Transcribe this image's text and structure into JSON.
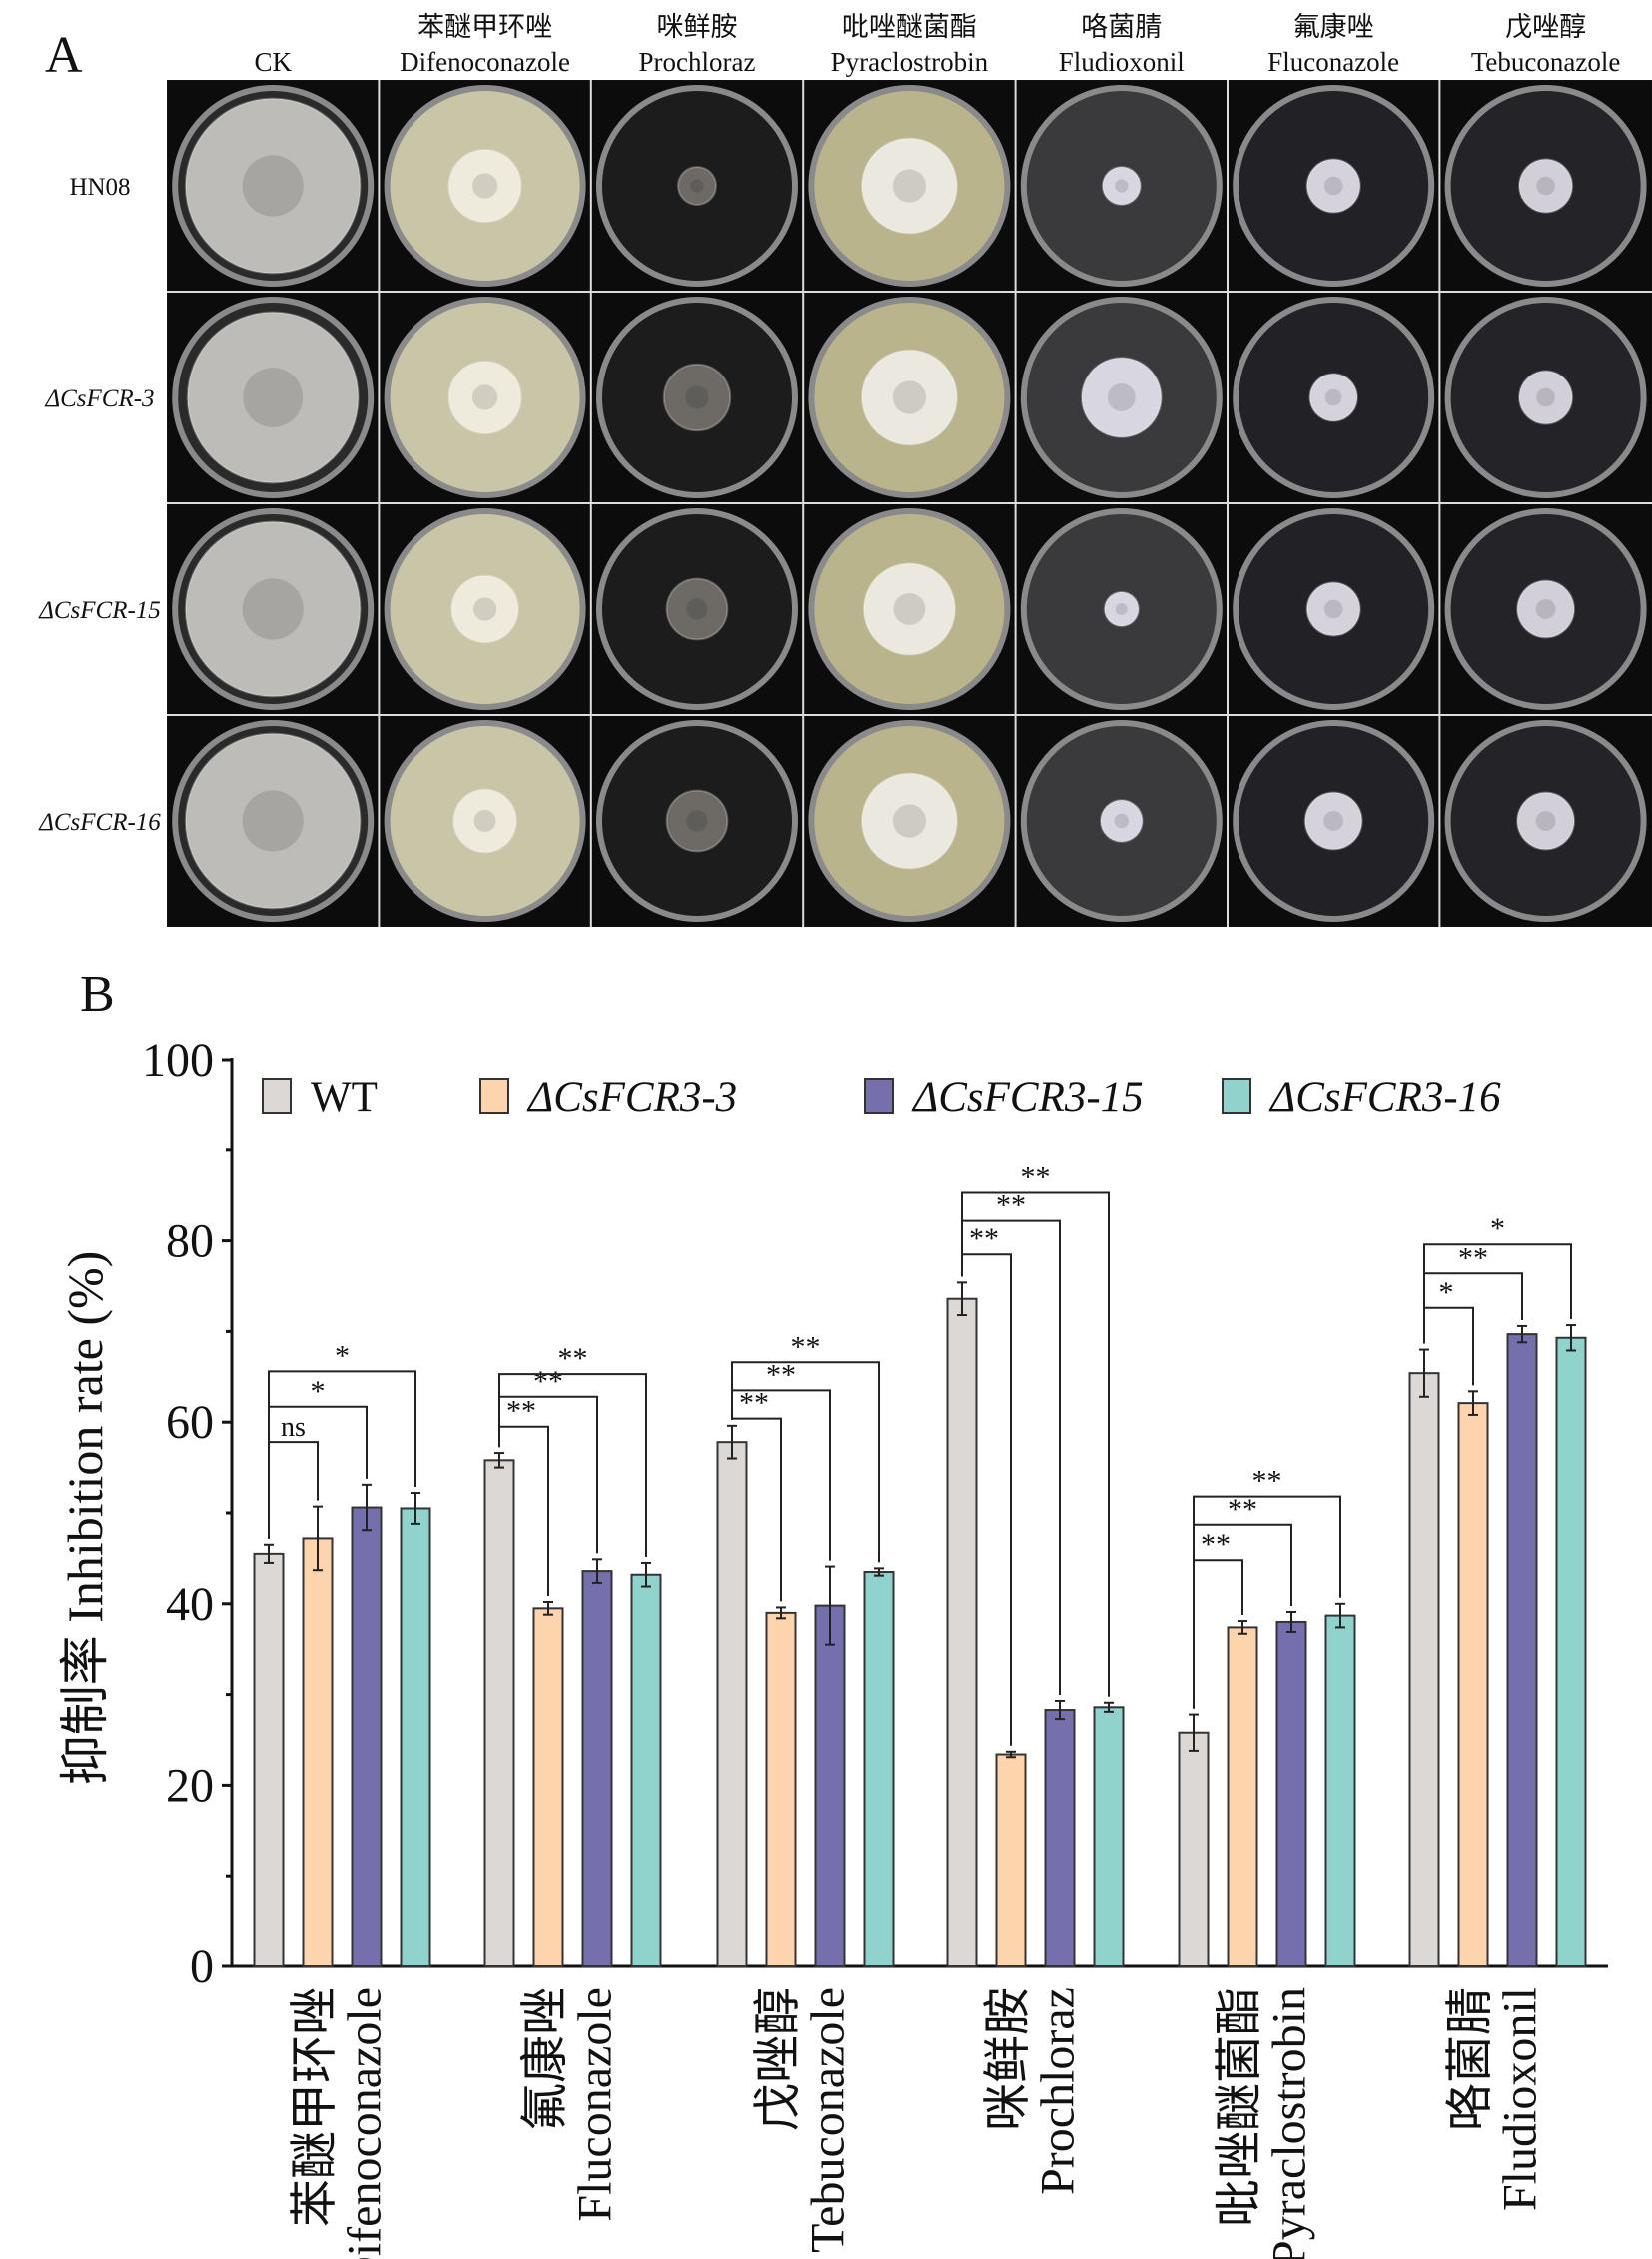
{
  "panelA": {
    "label": "A",
    "columns": [
      {
        "zh": "",
        "en": "CK"
      },
      {
        "zh": "苯醚甲环唑",
        "en": "Difenoconazole"
      },
      {
        "zh": "咪鲜胺",
        "en": "Prochloraz"
      },
      {
        "zh": "吡唑醚菌酯",
        "en": "Pyraclostrobin"
      },
      {
        "zh": "咯菌腈",
        "en": "Fludioxonil"
      },
      {
        "zh": "氟康唑",
        "en": "Fluconazole"
      },
      {
        "zh": "戊唑醇",
        "en": "Tebuconazole"
      }
    ],
    "rows": [
      "HN08",
      "ΔCsFCR-3",
      "ΔCsFCR-15",
      "ΔCsFCR-16"
    ],
    "dish_background": [
      "#2a2a2a",
      "#c9c6a8",
      "#1c1c1c",
      "#b9b48c",
      "#3a3a3c",
      "#222226",
      "#242428"
    ],
    "colony_color": [
      "#bdbcb8",
      "#eeeadc",
      "#6d6a66",
      "#eae8df",
      "#d8d6e0",
      "#d6d2dc",
      "#d2cfd8"
    ],
    "colony_relative_diameter": [
      [
        0.92,
        0.38,
        0.2,
        0.5,
        0.2,
        0.28,
        0.28
      ],
      [
        0.9,
        0.38,
        0.35,
        0.5,
        0.42,
        0.25,
        0.28
      ],
      [
        0.92,
        0.35,
        0.32,
        0.48,
        0.18,
        0.28,
        0.3
      ],
      [
        0.92,
        0.33,
        0.32,
        0.5,
        0.22,
        0.3,
        0.3
      ]
    ]
  },
  "chart_data": {
    "panel_label": "B",
    "type": "bar",
    "ylabel": "抑制率 Inhibition rate (%)",
    "ylim": [
      0,
      100
    ],
    "yticks": [
      0,
      20,
      40,
      60,
      80,
      100
    ],
    "legend_position": "top",
    "categories": [
      {
        "zh": "苯醚甲环唑",
        "en": "Difenoconazole"
      },
      {
        "zh": "氟康唑",
        "en": "Fluconazole"
      },
      {
        "zh": "戊唑醇",
        "en": "Tebuconazole"
      },
      {
        "zh": "咪鲜胺",
        "en": "Prochloraz"
      },
      {
        "zh": "吡唑醚菌酯",
        "en": "Pyraclostrobin"
      },
      {
        "zh": "咯菌腈",
        "en": "Fludioxonil"
      }
    ],
    "series": [
      {
        "name": "WT",
        "color": "#dcd8d6",
        "values": [
          45.5,
          55.8,
          57.8,
          73.6,
          25.8,
          65.4
        ],
        "errors": [
          1.0,
          0.8,
          1.8,
          1.8,
          2.0,
          2.6
        ]
      },
      {
        "name": "ΔCsFCR3-3",
        "color": "#fdd4ac",
        "values": [
          47.2,
          39.5,
          39.0,
          23.4,
          37.4,
          62.1
        ],
        "errors": [
          3.5,
          0.7,
          0.6,
          0.3,
          0.7,
          1.3
        ]
      },
      {
        "name": "ΔCsFCR3-15",
        "color": "#7570ad",
        "values": [
          50.6,
          43.6,
          39.8,
          28.3,
          38.0,
          69.7
        ],
        "errors": [
          2.5,
          1.3,
          4.3,
          1.0,
          1.1,
          0.9
        ]
      },
      {
        "name": "ΔCsFCR3-16",
        "color": "#90d2cc",
        "values": [
          50.5,
          43.2,
          43.5,
          28.6,
          38.7,
          69.3
        ],
        "errors": [
          1.7,
          1.3,
          0.4,
          0.5,
          1.3,
          1.4
        ]
      }
    ],
    "significance": [
      [
        {
          "vs": 1,
          "label": "ns",
          "y": 57.8
        },
        {
          "vs": 2,
          "label": "*",
          "y": 61.7
        },
        {
          "vs": 3,
          "label": "*",
          "y": 65.6
        }
      ],
      [
        {
          "vs": 1,
          "label": "**",
          "y": 59.5
        },
        {
          "vs": 2,
          "label": "**",
          "y": 62.8
        },
        {
          "vs": 3,
          "label": "**",
          "y": 65.3
        }
      ],
      [
        {
          "vs": 1,
          "label": "**",
          "y": 60.4
        },
        {
          "vs": 2,
          "label": "**",
          "y": 63.5
        },
        {
          "vs": 3,
          "label": "**",
          "y": 66.6
        }
      ],
      [
        {
          "vs": 1,
          "label": "**",
          "y": 78.5
        },
        {
          "vs": 2,
          "label": "**",
          "y": 82.2
        },
        {
          "vs": 3,
          "label": "**",
          "y": 85.3
        }
      ],
      [
        {
          "vs": 1,
          "label": "**",
          "y": 44.8
        },
        {
          "vs": 2,
          "label": "**",
          "y": 48.7
        },
        {
          "vs": 3,
          "label": "**",
          "y": 51.8
        }
      ],
      [
        {
          "vs": 1,
          "label": "*",
          "y": 72.6
        },
        {
          "vs": 2,
          "label": "**",
          "y": 76.4
        },
        {
          "vs": 3,
          "label": "*",
          "y": 79.6
        }
      ]
    ]
  }
}
